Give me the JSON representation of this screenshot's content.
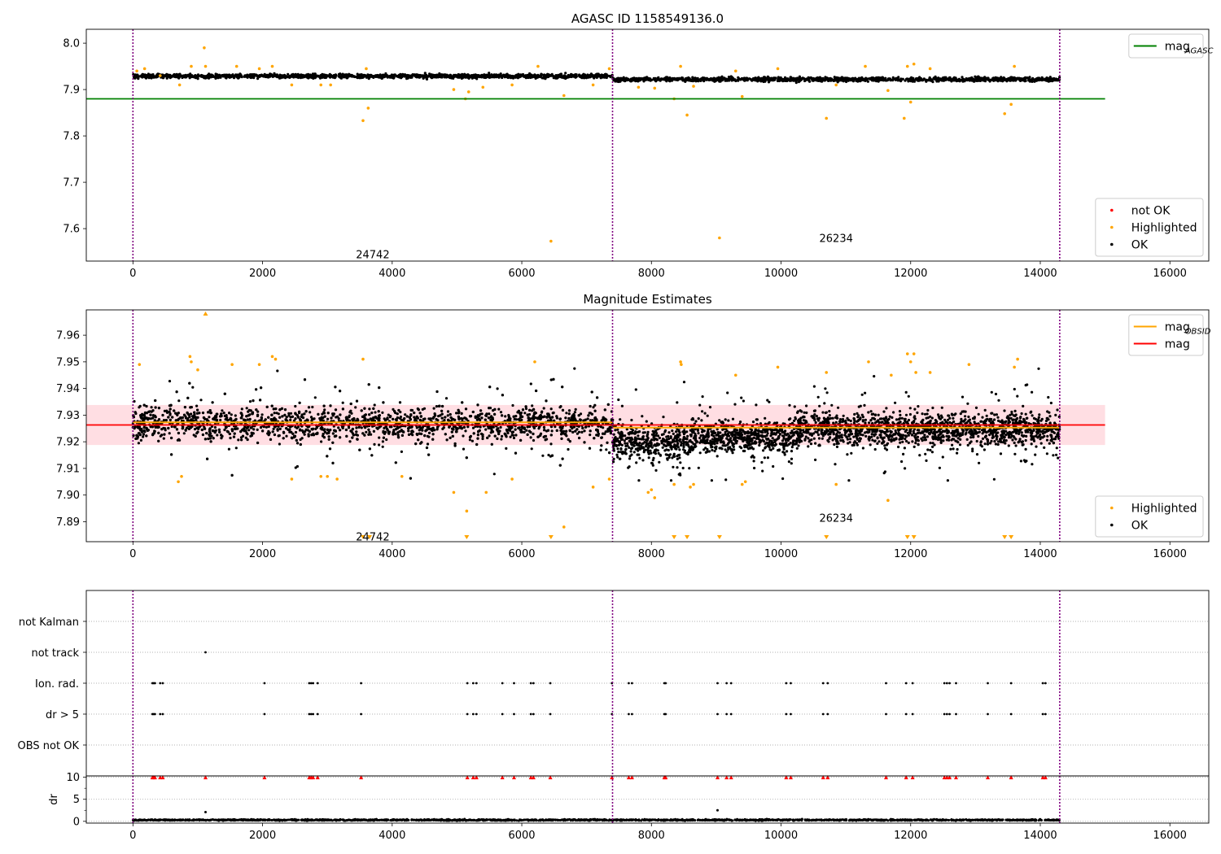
{
  "figure": {
    "background": "#ffffff",
    "colors": {
      "ok": "#000000",
      "highlighted": "#ffa500",
      "not_ok": "#ff0000",
      "mag_agasc": "#008000",
      "mag_obsid": "#ffa500",
      "mag": "#ff0000",
      "obsid_lines": "#800080",
      "band": "#ffb6c1"
    }
  },
  "chart_data": [
    {
      "id": "agasc",
      "type": "scatter",
      "title": "AGASC ID 1158549136.0",
      "xlim": [
        -720,
        16600
      ],
      "ylim": [
        7.53,
        8.03
      ],
      "xticks": [
        0,
        2000,
        4000,
        6000,
        8000,
        10000,
        12000,
        14000,
        16000
      ],
      "yticks": [
        7.6,
        7.7,
        7.8,
        7.9,
        8.0
      ],
      "ytick_labels": [
        "7.6",
        "7.7",
        "7.8",
        "7.9",
        "8.0"
      ],
      "obsid_boundaries": [
        0,
        7400,
        14300
      ],
      "obsid_labels": [
        {
          "text": "24742",
          "x": 3700,
          "y": 7.545
        },
        {
          "text": "26234",
          "x": 10850,
          "y": 7.58
        }
      ],
      "lines": [
        {
          "name": "mag_AGASC",
          "y": 7.88,
          "x": [
            -720,
            15000
          ],
          "color": "#008000"
        }
      ],
      "ok_band": {
        "segments": [
          [
            0,
            7400,
            7.929
          ],
          [
            7400,
            14300,
            7.922
          ]
        ],
        "spread": 0.008
      },
      "highlighted_points": [
        [
          60,
          7.94
        ],
        [
          180,
          7.945
        ],
        [
          420,
          7.93
        ],
        [
          720,
          7.91
        ],
        [
          900,
          7.95
        ],
        [
          1100,
          7.99
        ],
        [
          1120,
          7.95
        ],
        [
          1600,
          7.95
        ],
        [
          1950,
          7.945
        ],
        [
          2150,
          7.95
        ],
        [
          2450,
          7.91
        ],
        [
          2900,
          7.91
        ],
        [
          3050,
          7.91
        ],
        [
          3550,
          7.833
        ],
        [
          3600,
          7.945
        ],
        [
          3630,
          7.86
        ],
        [
          4950,
          7.9
        ],
        [
          5130,
          7.88
        ],
        [
          5180,
          7.895
        ],
        [
          5400,
          7.905
        ],
        [
          5850,
          7.91
        ],
        [
          6250,
          7.95
        ],
        [
          6450,
          7.573
        ],
        [
          6650,
          7.887
        ],
        [
          7100,
          7.91
        ],
        [
          7350,
          7.945
        ],
        [
          7800,
          7.905
        ],
        [
          8050,
          7.903
        ],
        [
          8350,
          7.88
        ],
        [
          8450,
          7.95
        ],
        [
          8550,
          7.845
        ],
        [
          8650,
          7.907
        ],
        [
          9050,
          7.58
        ],
        [
          9300,
          7.94
        ],
        [
          9400,
          7.885
        ],
        [
          9950,
          7.945
        ],
        [
          10700,
          7.838
        ],
        [
          10850,
          7.91
        ],
        [
          11300,
          7.95
        ],
        [
          11650,
          7.898
        ],
        [
          11900,
          7.838
        ],
        [
          11950,
          7.95
        ],
        [
          12000,
          7.873
        ],
        [
          12050,
          7.955
        ],
        [
          12300,
          7.945
        ],
        [
          13450,
          7.848
        ],
        [
          13550,
          7.868
        ],
        [
          13600,
          7.95
        ]
      ],
      "legends": [
        {
          "position": "upper right",
          "entries": [
            {
              "label": "mag",
              "sub": "AGASC",
              "marker": "line",
              "color": "#008000"
            }
          ]
        },
        {
          "position": "lower right",
          "entries": [
            {
              "label": "not OK",
              "marker": "dot",
              "color": "#ff0000"
            },
            {
              "label": "Highlighted",
              "marker": "dot",
              "color": "#ffa500"
            },
            {
              "label": "OK",
              "marker": "dot",
              "color": "#000000"
            }
          ]
        }
      ]
    },
    {
      "id": "mag",
      "type": "scatter",
      "title": "Magnitude Estimates",
      "xlim": [
        -720,
        16600
      ],
      "ylim": [
        7.8825,
        7.9695
      ],
      "xticks": [
        0,
        2000,
        4000,
        6000,
        8000,
        10000,
        12000,
        14000,
        16000
      ],
      "yticks": [
        7.89,
        7.9,
        7.91,
        7.92,
        7.93,
        7.94,
        7.95,
        7.96
      ],
      "ytick_labels": [
        "7.89",
        "7.90",
        "7.91",
        "7.92",
        "7.93",
        "7.94",
        "7.95",
        "7.96"
      ],
      "obsid_boundaries": [
        0,
        7400,
        14300
      ],
      "obsid_labels": [
        {
          "text": "24742",
          "x": 3700,
          "y": 7.8845
        },
        {
          "text": "26234",
          "x": 10850,
          "y": 7.8915
        }
      ],
      "band": {
        "y0": 7.9188,
        "y1": 7.9338,
        "x": [
          -720,
          15000
        ],
        "color": "#ffb6c1"
      },
      "lines": [
        {
          "name": "mag",
          "y": 7.9263,
          "x": [
            -720,
            15000
          ],
          "color": "#ff0000"
        },
        {
          "name": "mag_OBSID",
          "segments": [
            [
              0,
              7400,
              7.9273
            ],
            [
              7400,
              14300,
              7.9253
            ]
          ],
          "color": "#ffa500"
        }
      ],
      "ok_band": {
        "segments": [
          [
            0,
            7400,
            7.927
          ],
          [
            7400,
            8600,
            7.92
          ],
          [
            8600,
            10200,
            7.922
          ],
          [
            10200,
            14300,
            7.925
          ]
        ],
        "spread": 0.011
      },
      "highlighted_points": [
        [
          100,
          7.949
        ],
        [
          700,
          7.905
        ],
        [
          750,
          7.907
        ],
        [
          880,
          7.952
        ],
        [
          900,
          7.95
        ],
        [
          1000,
          7.947
        ],
        [
          1530,
          7.949
        ],
        [
          1950,
          7.949
        ],
        [
          2150,
          7.952
        ],
        [
          2200,
          7.951
        ],
        [
          2450,
          7.906
        ],
        [
          2900,
          7.907
        ],
        [
          3000,
          7.907
        ],
        [
          3150,
          7.906
        ],
        [
          3550,
          7.951
        ],
        [
          4150,
          7.907
        ],
        [
          4950,
          7.901
        ],
        [
          5150,
          7.894
        ],
        [
          5450,
          7.901
        ],
        [
          5850,
          7.906
        ],
        [
          6200,
          7.95
        ],
        [
          6650,
          7.888
        ],
        [
          7100,
          7.903
        ],
        [
          7350,
          7.906
        ],
        [
          7950,
          7.901
        ],
        [
          8000,
          7.902
        ],
        [
          8050,
          7.899
        ],
        [
          8350,
          7.904
        ],
        [
          8450,
          7.95
        ],
        [
          8460,
          7.949
        ],
        [
          8600,
          7.903
        ],
        [
          8650,
          7.904
        ],
        [
          9300,
          7.945
        ],
        [
          9400,
          7.904
        ],
        [
          9450,
          7.905
        ],
        [
          9950,
          7.948
        ],
        [
          10700,
          7.946
        ],
        [
          10850,
          7.904
        ],
        [
          11350,
          7.95
        ],
        [
          11650,
          7.898
        ],
        [
          11700,
          7.945
        ],
        [
          11950,
          7.953
        ],
        [
          12000,
          7.95
        ],
        [
          12050,
          7.953
        ],
        [
          12080,
          7.946
        ],
        [
          12300,
          7.946
        ],
        [
          12900,
          7.949
        ],
        [
          13650,
          7.951
        ],
        [
          13600,
          7.948
        ]
      ],
      "below_range_markers": [
        5150,
        6450,
        8350,
        8550,
        9050,
        10700,
        11950,
        12050,
        13450,
        13550
      ],
      "below_range_extra": [
        3550,
        3650
      ],
      "above_range_markers": [
        1120
      ],
      "legends": [
        {
          "position": "upper right",
          "entries": [
            {
              "label": "mag",
              "sub": "OBSID",
              "marker": "line",
              "color": "#ffa500"
            },
            {
              "label": "mag",
              "marker": "line",
              "color": "#ff0000"
            }
          ]
        },
        {
          "position": "lower right",
          "entries": [
            {
              "label": "Highlighted",
              "marker": "dot",
              "color": "#ffa500"
            },
            {
              "label": "OK",
              "marker": "dot",
              "color": "#000000"
            }
          ]
        }
      ]
    },
    {
      "id": "flags",
      "type": "scatter",
      "title": "",
      "xlim": [
        -720,
        16600
      ],
      "categories": [
        "not Kalman",
        "not track",
        "Ion. rad.",
        "dr > 5",
        "OBS not OK"
      ],
      "obsid_boundaries": [
        0,
        7400,
        14300
      ],
      "flag_points": {
        "not track": [
          1120
        ],
        "Ion. rad.": [
          300,
          320,
          340,
          420,
          460,
          2030,
          2720,
          2750,
          2780,
          2850,
          3520,
          5160,
          5250,
          5300,
          5700,
          5880,
          6140,
          6180,
          6440,
          7390,
          7650,
          7700,
          8200,
          8220,
          9020,
          9160,
          9230,
          10080,
          10150,
          10650,
          10720,
          11620,
          11930,
          12030,
          12520,
          12560,
          12600,
          12700,
          13190,
          13550,
          14040,
          14080
        ],
        "dr > 5": [
          300,
          320,
          340,
          420,
          460,
          2030,
          2720,
          2750,
          2780,
          2850,
          3520,
          5160,
          5250,
          5300,
          5700,
          5880,
          6140,
          6180,
          6440,
          7390,
          7650,
          7700,
          8200,
          8220,
          9020,
          9160,
          9230,
          10080,
          10150,
          10650,
          10720,
          11620,
          11930,
          12030,
          12520,
          12560,
          12600,
          12700,
          13190,
          13550,
          14040,
          14080
        ]
      }
    },
    {
      "id": "dr",
      "type": "scatter",
      "title": "",
      "ylabel": "dr",
      "xlim": [
        -720,
        16600
      ],
      "ylim": [
        -0.4,
        10.3
      ],
      "xticks": [
        0,
        2000,
        4000,
        6000,
        8000,
        10000,
        12000,
        14000,
        16000
      ],
      "yticks": [
        0,
        5,
        10
      ],
      "minor_yticks": [
        2.5,
        7.5
      ],
      "ytick_labels": [
        "0",
        "5",
        "10"
      ],
      "obsid_boundaries": [
        0,
        7400,
        14300
      ],
      "capped_points": [
        300,
        320,
        340,
        420,
        460,
        1120,
        2030,
        2720,
        2750,
        2780,
        2850,
        3520,
        5160,
        5250,
        5300,
        5700,
        5880,
        6140,
        6180,
        6440,
        7390,
        7650,
        7700,
        8200,
        8220,
        9020,
        9160,
        9230,
        10080,
        10150,
        10650,
        10720,
        11620,
        11930,
        12030,
        12520,
        12560,
        12600,
        12700,
        13190,
        13550,
        14040,
        14080
      ],
      "outliers": [
        [
          1120,
          2.1
        ],
        [
          9020,
          2.5
        ]
      ],
      "ok_range": [
        0,
        14300
      ],
      "ok_level": 0.3
    }
  ]
}
